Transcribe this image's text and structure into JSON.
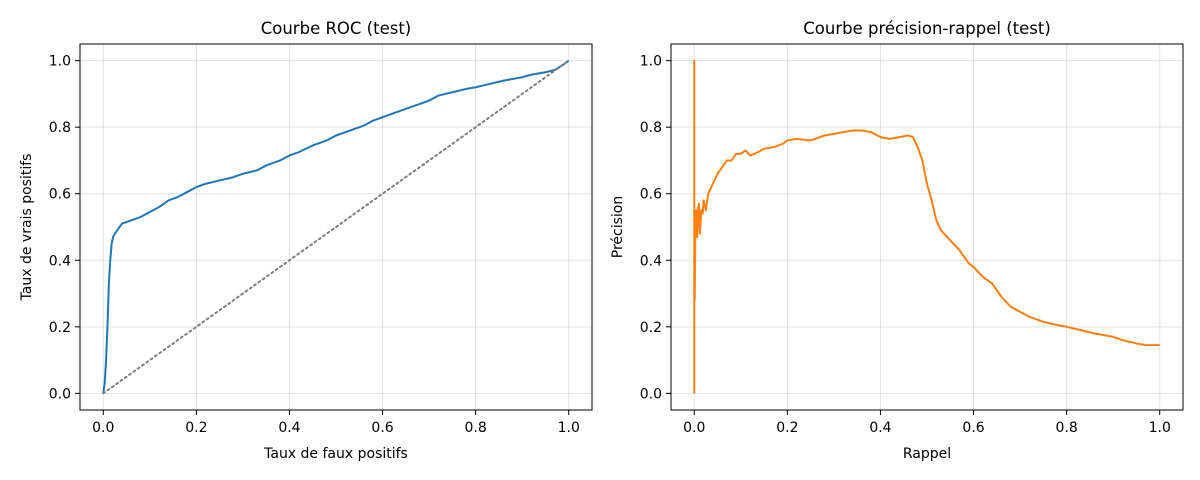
{
  "chart_data": [
    {
      "type": "line",
      "title": "Courbe ROC (test)",
      "xlabel": "Taux de faux positifs",
      "ylabel": "Taux de vrais positifs",
      "xlim": [
        -0.05,
        1.05
      ],
      "ylim": [
        -0.05,
        1.05
      ],
      "xticks": [
        "0.0",
        "0.2",
        "0.4",
        "0.6",
        "0.8",
        "1.0"
      ],
      "yticks": [
        "0.0",
        "0.2",
        "0.4",
        "0.6",
        "0.8",
        "1.0"
      ],
      "grid": true,
      "series": [
        {
          "color": "#1f77b4",
          "style": "solid",
          "x": [
            0.0,
            0.003,
            0.006,
            0.009,
            0.012,
            0.015,
            0.018,
            0.021,
            0.025,
            0.03,
            0.04,
            0.05,
            0.06,
            0.08,
            0.1,
            0.12,
            0.14,
            0.16,
            0.18,
            0.2,
            0.22,
            0.25,
            0.28,
            0.3,
            0.33,
            0.35,
            0.38,
            0.4,
            0.42,
            0.45,
            0.48,
            0.5,
            0.53,
            0.56,
            0.58,
            0.6,
            0.63,
            0.66,
            0.68,
            0.7,
            0.72,
            0.75,
            0.78,
            0.8,
            0.83,
            0.86,
            0.88,
            0.9,
            0.92,
            0.95,
            0.97,
            0.985,
            1.0
          ],
          "y": [
            0.0,
            0.03,
            0.1,
            0.2,
            0.33,
            0.4,
            0.45,
            0.47,
            0.48,
            0.49,
            0.51,
            0.515,
            0.52,
            0.53,
            0.545,
            0.56,
            0.58,
            0.59,
            0.605,
            0.62,
            0.63,
            0.64,
            0.65,
            0.66,
            0.67,
            0.685,
            0.7,
            0.715,
            0.725,
            0.745,
            0.76,
            0.775,
            0.79,
            0.805,
            0.82,
            0.83,
            0.845,
            0.86,
            0.87,
            0.88,
            0.895,
            0.905,
            0.915,
            0.92,
            0.93,
            0.94,
            0.945,
            0.95,
            0.958,
            0.965,
            0.972,
            0.985,
            1.0
          ]
        },
        {
          "color": "#7f7f7f",
          "style": "dotted",
          "x": [
            0.0,
            1.0
          ],
          "y": [
            0.0,
            1.0
          ]
        }
      ]
    },
    {
      "type": "line",
      "title": "Courbe précision-rappel (test)",
      "xlabel": "Rappel",
      "ylabel": "Précision",
      "xlim": [
        -0.05,
        1.05
      ],
      "ylim": [
        -0.05,
        1.05
      ],
      "xticks": [
        "0.0",
        "0.2",
        "0.4",
        "0.6",
        "0.8",
        "1.0"
      ],
      "yticks": [
        "0.0",
        "0.2",
        "0.4",
        "0.6",
        "0.8",
        "1.0"
      ],
      "grid": true,
      "series": [
        {
          "color": "#ff7f0e",
          "style": "solid",
          "x": [
            0.0,
            0.0,
            0.0,
            0.001,
            0.002,
            0.003,
            0.004,
            0.005,
            0.006,
            0.007,
            0.008,
            0.009,
            0.01,
            0.012,
            0.015,
            0.018,
            0.02,
            0.025,
            0.03,
            0.04,
            0.05,
            0.06,
            0.07,
            0.08,
            0.09,
            0.1,
            0.11,
            0.12,
            0.13,
            0.15,
            0.17,
            0.19,
            0.2,
            0.22,
            0.25,
            0.28,
            0.3,
            0.32,
            0.34,
            0.36,
            0.38,
            0.4,
            0.42,
            0.44,
            0.46,
            0.47,
            0.48,
            0.49,
            0.5,
            0.51,
            0.52,
            0.53,
            0.55,
            0.57,
            0.59,
            0.6,
            0.62,
            0.64,
            0.66,
            0.68,
            0.7,
            0.72,
            0.75,
            0.78,
            0.8,
            0.83,
            0.86,
            0.88,
            0.9,
            0.92,
            0.95,
            0.97,
            1.0
          ],
          "y": [
            0.0,
            1.0,
            0.35,
            0.28,
            0.45,
            0.52,
            0.55,
            0.5,
            0.47,
            0.5,
            0.56,
            0.52,
            0.57,
            0.48,
            0.55,
            0.54,
            0.58,
            0.55,
            0.6,
            0.63,
            0.66,
            0.68,
            0.7,
            0.7,
            0.72,
            0.72,
            0.73,
            0.715,
            0.72,
            0.735,
            0.74,
            0.75,
            0.76,
            0.765,
            0.76,
            0.775,
            0.78,
            0.785,
            0.79,
            0.79,
            0.785,
            0.77,
            0.765,
            0.77,
            0.775,
            0.77,
            0.74,
            0.7,
            0.63,
            0.58,
            0.52,
            0.49,
            0.46,
            0.43,
            0.39,
            0.38,
            0.35,
            0.33,
            0.29,
            0.26,
            0.245,
            0.23,
            0.215,
            0.205,
            0.2,
            0.19,
            0.18,
            0.175,
            0.17,
            0.16,
            0.15,
            0.145,
            0.145
          ]
        }
      ]
    }
  ]
}
